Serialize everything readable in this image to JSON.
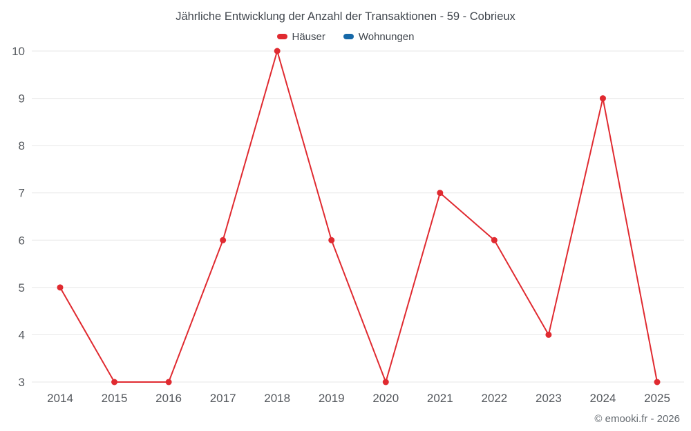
{
  "page": {
    "title": "Jährliche Entwicklung der Anzahl der Transaktionen - 59 - Cobrieux",
    "footer": "© emooki.fr - 2026"
  },
  "legend": [
    {
      "label": "Häuser",
      "color": "#e02a30"
    },
    {
      "label": "Wohnungen",
      "color": "#1668a8"
    }
  ],
  "colors": {
    "gridline": "#e7e7e7",
    "tick_text": "#55595e"
  },
  "chart_data": {
    "type": "line",
    "title": "Jährliche Entwicklung der Anzahl der Transaktionen - 59 - Cobrieux",
    "categories": [
      "2014",
      "2015",
      "2016",
      "2017",
      "2018",
      "2019",
      "2020",
      "2021",
      "2022",
      "2023",
      "2024",
      "2025"
    ],
    "series": [
      {
        "name": "Häuser",
        "color": "#e02a30",
        "values": [
          5,
          3,
          3,
          6,
          10,
          6,
          3,
          7,
          6,
          4,
          9,
          3
        ]
      },
      {
        "name": "Wohnungen",
        "color": "#1668a8",
        "values": []
      }
    ],
    "xlabel": "",
    "ylabel": "",
    "ylim": [
      3,
      10
    ],
    "yticks": [
      3,
      4,
      5,
      6,
      7,
      8,
      9,
      10
    ],
    "grid": true,
    "legend_position": "top",
    "marker": "circle"
  }
}
